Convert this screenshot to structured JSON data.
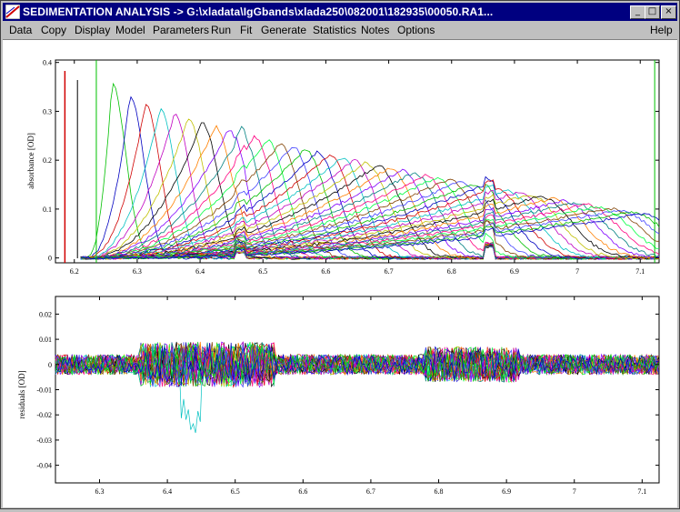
{
  "window": {
    "title": "SEDIMENTATION ANALYSIS -> G:\\xladata\\IgGbands\\xlada250\\082001\\182935\\00050.RA1...",
    "buttons": {
      "minimize": "_",
      "maximize": "□",
      "close": "×"
    }
  },
  "menu": {
    "items": [
      "Data",
      "Copy",
      "Display",
      "Model",
      "Parameters",
      "Run",
      "Fit",
      "Generate",
      "Statistics",
      "Notes",
      "Options"
    ],
    "help": "Help"
  },
  "colors": {
    "titlebar": "#000080",
    "cell_marker": "#00c000",
    "meniscus": "#d00000"
  },
  "chart_data": [
    {
      "type": "line",
      "title": "",
      "xlabel": "",
      "ylabel": "absorbance [OD]",
      "xlim": [
        6.17,
        7.13
      ],
      "ylim": [
        -0.01,
        0.405
      ],
      "x_ticks": [
        "6.2",
        "6.3",
        "6.4",
        "6.5",
        "6.6",
        "6.7",
        "6.8",
        "6.9",
        "7",
        "7.1"
      ],
      "y_ticks": [
        "0",
        "0.1",
        "0.2",
        "0.3",
        "0.4"
      ],
      "markers": [
        6.235,
        7.123
      ],
      "description_series": "many scans of moving boundary absorbance profiles",
      "series_params": {
        "count": 44,
        "radius_start": 6.26,
        "radius_end": 7.1,
        "peak_height_start": 0.36,
        "peak_height_end": 0.09
      }
    },
    {
      "type": "line",
      "title": "",
      "xlabel": "",
      "ylabel": "residuals [OD]",
      "xlim": [
        6.235,
        7.125
      ],
      "ylim": [
        -0.047,
        0.027
      ],
      "x_ticks": [
        "6.3",
        "6.4",
        "6.5",
        "6.6",
        "6.7",
        "6.8",
        "6.9",
        "7",
        "7.1"
      ],
      "y_ticks": [
        "0.02",
        "0.01",
        "0",
        "-0.01",
        "-0.02",
        "-0.03",
        "-0.04"
      ],
      "series_params": {
        "count": 30
      }
    }
  ]
}
